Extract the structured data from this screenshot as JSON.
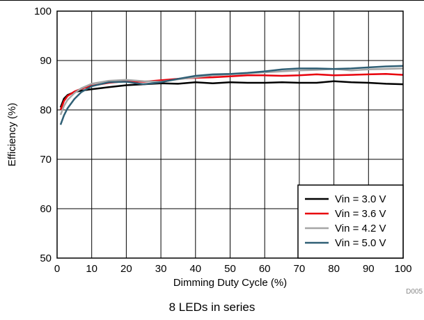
{
  "chart_data": {
    "type": "line",
    "xlabel": "Dimming Duty Cycle (%)",
    "ylabel": "Efficiency (%)",
    "xlim": [
      0,
      100
    ],
    "ylim": [
      50,
      100
    ],
    "xticks": [
      0,
      10,
      20,
      30,
      40,
      50,
      60,
      70,
      80,
      90,
      100
    ],
    "yticks": [
      50,
      60,
      70,
      80,
      90,
      100
    ],
    "grid": true,
    "legend_position": "bottom-right",
    "series": [
      {
        "name": "Vin = 3.0 V",
        "color": "#000000",
        "x": [
          1,
          2,
          3,
          5,
          7,
          10,
          15,
          20,
          25,
          30,
          35,
          40,
          45,
          50,
          55,
          60,
          65,
          70,
          75,
          80,
          85,
          90,
          95,
          100
        ],
        "y": [
          80.5,
          82.3,
          83.0,
          83.6,
          83.9,
          84.2,
          84.6,
          85.0,
          85.2,
          85.4,
          85.3,
          85.6,
          85.4,
          85.6,
          85.5,
          85.5,
          85.6,
          85.5,
          85.5,
          85.8,
          85.6,
          85.5,
          85.3,
          85.2
        ]
      },
      {
        "name": "Vin = 3.6 V",
        "color": "#e8000b",
        "x": [
          1,
          2,
          3,
          5,
          7,
          10,
          15,
          20,
          25,
          30,
          35,
          40,
          45,
          50,
          55,
          60,
          65,
          70,
          75,
          80,
          85,
          90,
          95,
          100
        ],
        "y": [
          80.0,
          81.8,
          82.8,
          83.7,
          84.3,
          84.9,
          85.5,
          85.8,
          85.7,
          86.0,
          86.3,
          86.5,
          86.6,
          86.8,
          87.0,
          87.0,
          86.9,
          87.0,
          87.2,
          87.0,
          87.1,
          87.2,
          87.3,
          87.1
        ]
      },
      {
        "name": "Vin = 4.2 V",
        "color": "#a6a6a6",
        "x": [
          1,
          2,
          3,
          5,
          7,
          10,
          15,
          20,
          25,
          30,
          35,
          40,
          45,
          50,
          55,
          60,
          65,
          70,
          75,
          80,
          85,
          90,
          95,
          100
        ],
        "y": [
          79.0,
          80.8,
          82.0,
          83.4,
          84.4,
          85.3,
          85.9,
          86.1,
          85.8,
          85.7,
          86.2,
          86.6,
          87.0,
          87.2,
          87.4,
          87.6,
          87.8,
          88.0,
          88.1,
          88.3,
          88.0,
          88.2,
          88.3,
          88.4
        ]
      },
      {
        "name": "Vin = 5.0 V",
        "color": "#2f5f75",
        "x": [
          1,
          2,
          3,
          5,
          7,
          10,
          15,
          20,
          25,
          30,
          35,
          40,
          45,
          50,
          55,
          60,
          65,
          70,
          75,
          80,
          85,
          90,
          95,
          100
        ],
        "y": [
          77.0,
          78.9,
          80.3,
          82.2,
          83.6,
          84.8,
          85.6,
          85.7,
          85.2,
          85.6,
          86.3,
          86.9,
          87.2,
          87.3,
          87.5,
          87.8,
          88.2,
          88.4,
          88.4,
          88.3,
          88.4,
          88.6,
          88.8,
          88.9
        ]
      }
    ],
    "footnote_id": "D005",
    "caption": "8 LEDs in series"
  }
}
